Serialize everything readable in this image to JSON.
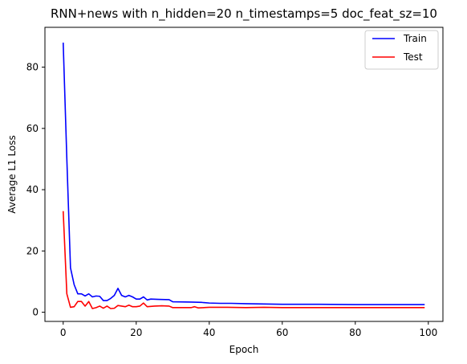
{
  "chart_data": {
    "type": "line",
    "title": "RNN+news with n_hidden=20 n_timestamps=5 doc_feat_sz=10",
    "xlabel": "Epoch",
    "ylabel": "Average L1 Loss",
    "xlim": [
      -5,
      104
    ],
    "ylim": [
      -3,
      93
    ],
    "xticks": [
      0,
      20,
      40,
      60,
      80,
      100
    ],
    "yticks": [
      0,
      20,
      40,
      60,
      80
    ],
    "grid": false,
    "legend_position": "top-right",
    "series": [
      {
        "name": "Train",
        "color": "#0000ff",
        "points": [
          [
            0,
            88.0
          ],
          [
            1,
            50.0
          ],
          [
            2,
            14.5
          ],
          [
            3,
            9.0
          ],
          [
            4,
            6.0
          ],
          [
            5,
            6.0
          ],
          [
            6,
            5.3
          ],
          [
            7,
            6.0
          ],
          [
            8,
            5.0
          ],
          [
            9,
            5.3
          ],
          [
            10,
            5.2
          ],
          [
            11,
            3.8
          ],
          [
            12,
            3.8
          ],
          [
            13,
            4.5
          ],
          [
            14,
            5.5
          ],
          [
            15,
            7.8
          ],
          [
            16,
            5.5
          ],
          [
            17,
            5.0
          ],
          [
            18,
            5.5
          ],
          [
            19,
            5.0
          ],
          [
            20,
            4.3
          ],
          [
            21,
            4.3
          ],
          [
            22,
            5.0
          ],
          [
            23,
            4.0
          ],
          [
            24,
            4.3
          ],
          [
            26,
            4.2
          ],
          [
            29,
            4.1
          ],
          [
            30,
            3.4
          ],
          [
            35,
            3.3
          ],
          [
            38,
            3.2
          ],
          [
            40,
            3.0
          ],
          [
            43,
            2.9
          ],
          [
            46,
            2.9
          ],
          [
            50,
            2.8
          ],
          [
            55,
            2.7
          ],
          [
            60,
            2.6
          ],
          [
            70,
            2.6
          ],
          [
            80,
            2.5
          ],
          [
            90,
            2.5
          ],
          [
            99,
            2.5
          ]
        ]
      },
      {
        "name": "Test",
        "color": "#ff0000",
        "points": [
          [
            0,
            33.0
          ],
          [
            1,
            6.0
          ],
          [
            2,
            1.6
          ],
          [
            3,
            1.8
          ],
          [
            4,
            3.5
          ],
          [
            5,
            3.5
          ],
          [
            6,
            2.0
          ],
          [
            7,
            3.5
          ],
          [
            8,
            1.2
          ],
          [
            9,
            1.5
          ],
          [
            10,
            2.0
          ],
          [
            11,
            1.3
          ],
          [
            12,
            2.0
          ],
          [
            13,
            1.2
          ],
          [
            14,
            1.3
          ],
          [
            15,
            2.2
          ],
          [
            16,
            2.0
          ],
          [
            17,
            1.8
          ],
          [
            18,
            2.3
          ],
          [
            19,
            1.8
          ],
          [
            20,
            1.8
          ],
          [
            21,
            2.0
          ],
          [
            22,
            3.0
          ],
          [
            23,
            1.8
          ],
          [
            25,
            2.0
          ],
          [
            27,
            2.1
          ],
          [
            29,
            2.0
          ],
          [
            30,
            1.5
          ],
          [
            35,
            1.5
          ],
          [
            36,
            1.8
          ],
          [
            37,
            1.4
          ],
          [
            40,
            1.6
          ],
          [
            45,
            1.6
          ],
          [
            50,
            1.5
          ],
          [
            55,
            1.6
          ],
          [
            60,
            1.5
          ],
          [
            70,
            1.5
          ],
          [
            80,
            1.5
          ],
          [
            90,
            1.5
          ],
          [
            99,
            1.5
          ]
        ]
      }
    ]
  }
}
